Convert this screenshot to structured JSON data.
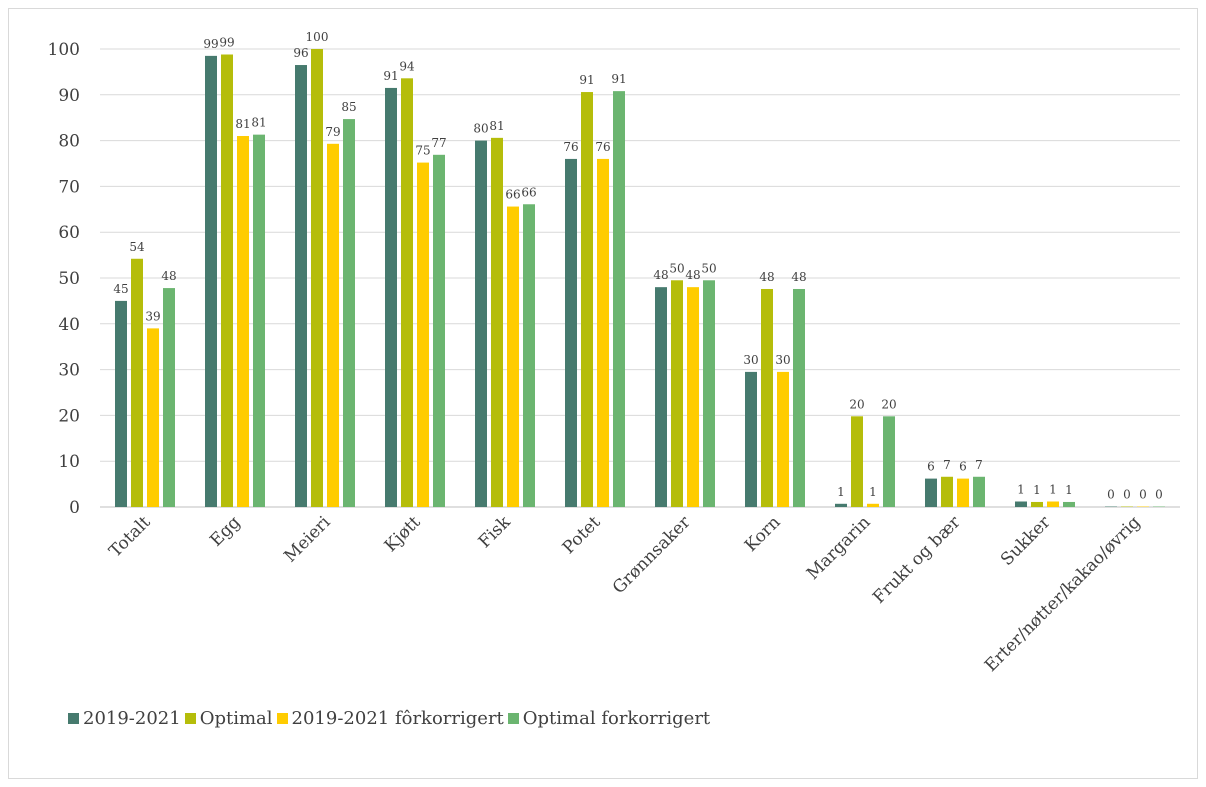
{
  "chart_data": {
    "type": "bar",
    "categories": [
      "Totalt",
      "Egg",
      "Meieri",
      "Kjøtt",
      "Fisk",
      "Potet",
      "Grønnsaker",
      "Korn",
      "Margarin",
      "Frukt og bær",
      "Sukker",
      "Erter/nøtter/kakao/øvrig"
    ],
    "series": [
      {
        "name": "2019-2021",
        "color": "#467a6e",
        "values": [
          45,
          98.5,
          96.5,
          91.5,
          80,
          76,
          48,
          29.5,
          0.7,
          6.2,
          1.2,
          0.1
        ],
        "labels": [
          "45",
          "99",
          "96",
          "91",
          "80",
          "76",
          "48",
          "30",
          "1",
          "6",
          "1",
          "0"
        ]
      },
      {
        "name": "Optimal",
        "color": "#b5bd0a",
        "values": [
          54.2,
          98.8,
          100,
          93.6,
          80.6,
          90.6,
          49.5,
          47.6,
          19.8,
          6.6,
          1.1,
          0.1
        ],
        "labels": [
          "54",
          "99",
          "100",
          "94",
          "81",
          "91",
          "50",
          "48",
          "20",
          "7",
          "1",
          "0"
        ]
      },
      {
        "name": "2019-2021 fôrkorrigert",
        "color": "#ffcc00",
        "values": [
          39,
          81,
          79.3,
          75.2,
          65.6,
          76,
          48,
          29.5,
          0.7,
          6.2,
          1.2,
          0.1
        ],
        "labels": [
          "39",
          "81",
          "79",
          "75",
          "66",
          "76",
          "48",
          "30",
          "1",
          "6",
          "1",
          "0"
        ]
      },
      {
        "name": "Optimal forkorrigert",
        "color": "#6bb570",
        "values": [
          47.8,
          81.3,
          84.7,
          76.9,
          66.1,
          90.8,
          49.5,
          47.6,
          19.8,
          6.6,
          1.1,
          0.1
        ],
        "labels": [
          "48",
          "81",
          "85",
          "77",
          "66",
          "91",
          "50",
          "48",
          "20",
          "7",
          "1",
          "0"
        ]
      }
    ],
    "yticks": [
      "0",
      "10",
      "20",
      "30",
      "40",
      "50",
      "60",
      "70",
      "80",
      "90",
      "100"
    ],
    "ylim": [
      0,
      100
    ],
    "grid": true,
    "legend_position": "bottom-left",
    "title": "",
    "xlabel": "",
    "ylabel": ""
  }
}
